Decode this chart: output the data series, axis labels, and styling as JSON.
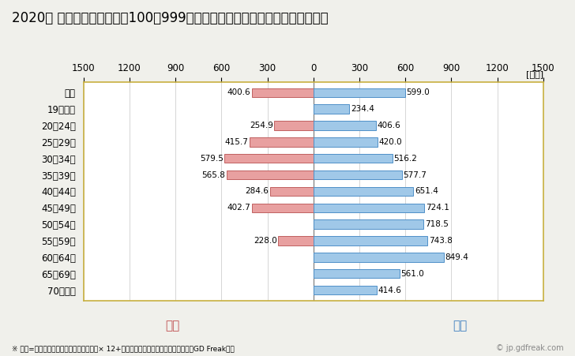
{
  "title": "2020年 民間企業（従業者数100〜999人）フルタイム労働者の男女別平均年収",
  "unit_label": "[万円]",
  "categories": [
    "全体",
    "19歳以下",
    "20〜24歳",
    "25〜29歳",
    "30〜34歳",
    "35〜39歳",
    "40〜44歳",
    "45〜49歳",
    "50〜54歳",
    "55〜59歳",
    "60〜64歳",
    "65〜69歳",
    "70歳以上"
  ],
  "female_values": [
    400.6,
    0,
    254.9,
    415.7,
    579.5,
    565.8,
    284.6,
    402.7,
    0,
    228.0,
    0,
    0,
    0
  ],
  "male_values": [
    599.0,
    234.4,
    406.6,
    420.0,
    516.2,
    577.7,
    651.4,
    724.1,
    718.5,
    743.8,
    849.4,
    561.0,
    414.6
  ],
  "female_color": "#e8a0a0",
  "male_color": "#a0c8e8",
  "female_border_color": "#c06060",
  "male_border_color": "#5090c8",
  "xlim": 1500,
  "female_label": "女性",
  "male_label": "男性",
  "female_label_color": "#c05050",
  "male_label_color": "#4080c0",
  "footnote": "※ 年収=「きまって支給する現金給与額」× 12+「年間賞与その他特別給与額」としてGD Freak推計",
  "copyright": "© jp.gdfreak.com",
  "bg_color": "#f0f0eb",
  "plot_bg_color": "#ffffff",
  "title_fontsize": 12,
  "axis_fontsize": 8.5,
  "label_fontsize": 8.5,
  "value_fontsize": 7.5,
  "bar_height": 0.55,
  "grid_color": "#d0d0d0",
  "spine_color": "#c8b040"
}
